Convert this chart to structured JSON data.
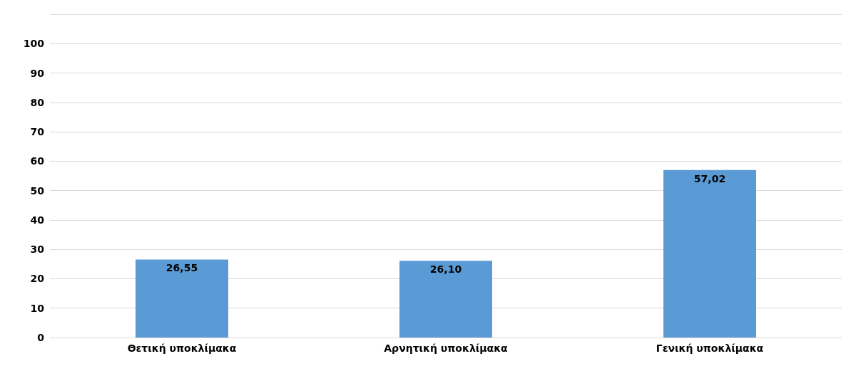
{
  "chart_data": {
    "type": "bar",
    "categories": [
      "Θετική υποκλίμακα",
      "Αρνητική υποκλίμακα",
      "Γενική υποκλίμακα"
    ],
    "values": [
      26.55,
      26.1,
      57.02
    ],
    "value_labels": [
      "26,55",
      "26,10",
      "57,02"
    ],
    "color": "#5b9bd5",
    "ylim": [
      0,
      110
    ],
    "yticks": [
      0,
      10,
      20,
      30,
      40,
      50,
      60,
      70,
      80,
      90,
      100,
      {
        "value": 110,
        "label": null
      }
    ],
    "grid": "y"
  }
}
